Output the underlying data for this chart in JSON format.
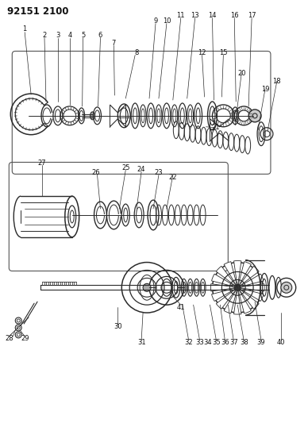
{
  "title": "92151 2100",
  "background_color": "#ffffff",
  "line_color": "#2a2a2a",
  "figsize": [
    3.88,
    5.33
  ],
  "dpi": 100,
  "title_fontsize": 8.5,
  "label_fontsize": 6.0
}
